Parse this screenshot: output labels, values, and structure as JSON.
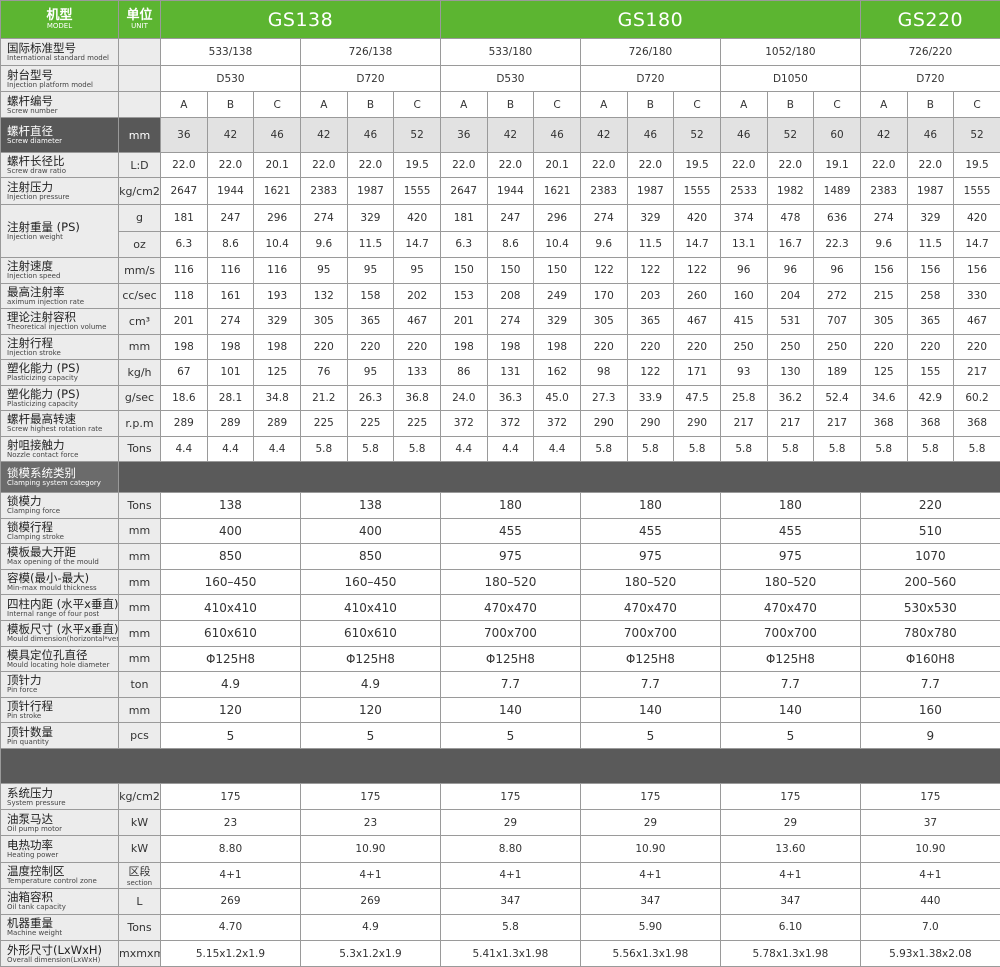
{
  "header": {
    "model_label": {
      "zh": "机型",
      "en": "MODEL"
    },
    "unit_label": {
      "zh": "单位",
      "en": "UNIT"
    },
    "models": [
      "GS138",
      "GS180",
      "GS220"
    ]
  },
  "injection": [
    {
      "zh": "国际标准型号",
      "en": "International standard model",
      "cells": [
        "533/138",
        "726/138",
        "533/180",
        "726/180",
        "1052/180",
        "726/220"
      ]
    },
    {
      "zh": "射台型号",
      "en": "Injection platform model",
      "cells": [
        "D530",
        "D720",
        "D530",
        "D720",
        "D1050",
        "D720"
      ]
    },
    {
      "zh": "螺杆编号",
      "en": "Screw number",
      "cells": [
        "A",
        "B",
        "C",
        "A",
        "B",
        "C",
        "A",
        "B",
        "C",
        "A",
        "B",
        "C",
        "A",
        "B",
        "C",
        "A",
        "B",
        "C"
      ]
    },
    {
      "zh": "螺杆直径",
      "en": "Screw diameter",
      "unit": "mm",
      "dark": true,
      "cells": [
        "36",
        "42",
        "46",
        "42",
        "46",
        "52",
        "36",
        "42",
        "46",
        "42",
        "46",
        "52",
        "46",
        "52",
        "60",
        "42",
        "46",
        "52"
      ]
    },
    {
      "zh": "螺杆长径比",
      "en": "Screw draw ratio",
      "unit": "L:D",
      "cells": [
        "22.0",
        "22.0",
        "20.1",
        "22.0",
        "22.0",
        "19.5",
        "22.0",
        "22.0",
        "20.1",
        "22.0",
        "22.0",
        "19.5",
        "22.0",
        "22.0",
        "19.1",
        "22.0",
        "22.0",
        "19.5"
      ]
    },
    {
      "zh": "注射压力",
      "en": "Injection pressure",
      "unit": "kg/cm2",
      "cells": [
        "2647",
        "1944",
        "1621",
        "2383",
        "1987",
        "1555",
        "2647",
        "1944",
        "1621",
        "2383",
        "1987",
        "1555",
        "2533",
        "1982",
        "1489",
        "2383",
        "1987",
        "1555"
      ]
    },
    {
      "zh": "注射重量 (PS)",
      "en": "Injection weight",
      "sub": [
        {
          "unit": "g",
          "cells": [
            "181",
            "247",
            "296",
            "274",
            "329",
            "420",
            "181",
            "247",
            "296",
            "274",
            "329",
            "420",
            "374",
            "478",
            "636",
            "274",
            "329",
            "420"
          ]
        },
        {
          "unit": "oz",
          "cells": [
            "6.3",
            "8.6",
            "10.4",
            "9.6",
            "11.5",
            "14.7",
            "6.3",
            "8.6",
            "10.4",
            "9.6",
            "11.5",
            "14.7",
            "13.1",
            "16.7",
            "22.3",
            "9.6",
            "11.5",
            "14.7"
          ]
        }
      ]
    },
    {
      "zh": "注射速度",
      "en": "Injection speed",
      "unit": "mm/s",
      "cells": [
        "116",
        "116",
        "116",
        "95",
        "95",
        "95",
        "150",
        "150",
        "150",
        "122",
        "122",
        "122",
        "96",
        "96",
        "96",
        "156",
        "156",
        "156"
      ]
    },
    {
      "zh": "最高注射率",
      "en": "aximum injection rate",
      "unit": "cc/sec",
      "cells": [
        "118",
        "161",
        "193",
        "132",
        "158",
        "202",
        "153",
        "208",
        "249",
        "170",
        "203",
        "260",
        "160",
        "204",
        "272",
        "215",
        "258",
        "330"
      ]
    },
    {
      "zh": "理论注射容积",
      "en": "Theoretical injection volume",
      "unit": "cm³",
      "cells": [
        "201",
        "274",
        "329",
        "305",
        "365",
        "467",
        "201",
        "274",
        "329",
        "305",
        "365",
        "467",
        "415",
        "531",
        "707",
        "305",
        "365",
        "467"
      ]
    },
    {
      "zh": "注射行程",
      "en": "Injection stroke",
      "unit": "mm",
      "cells": [
        "198",
        "198",
        "198",
        "220",
        "220",
        "220",
        "198",
        "198",
        "198",
        "220",
        "220",
        "220",
        "250",
        "250",
        "250",
        "220",
        "220",
        "220"
      ]
    },
    {
      "zh": "塑化能力 (PS)",
      "en": "Plasticizing capacity",
      "unit": "kg/h",
      "cells": [
        "67",
        "101",
        "125",
        "76",
        "95",
        "133",
        "86",
        "131",
        "162",
        "98",
        "122",
        "171",
        "93",
        "130",
        "189",
        "125",
        "155",
        "217"
      ]
    },
    {
      "zh": "塑化能力 (PS)",
      "en": "Plasticizing capacity",
      "unit": "g/sec",
      "cells": [
        "18.6",
        "28.1",
        "34.8",
        "21.2",
        "26.3",
        "36.8",
        "24.0",
        "36.3",
        "45.0",
        "27.3",
        "33.9",
        "47.5",
        "25.8",
        "36.2",
        "52.4",
        "34.6",
        "42.9",
        "60.2"
      ]
    },
    {
      "zh": "螺杆最高转速",
      "en": "Screw highest rotation rate",
      "unit": "r.p.m",
      "cells": [
        "289",
        "289",
        "289",
        "225",
        "225",
        "225",
        "372",
        "372",
        "372",
        "290",
        "290",
        "290",
        "217",
        "217",
        "217",
        "368",
        "368",
        "368"
      ]
    },
    {
      "zh": "射咀接触力",
      "en": "Nozzle contact force",
      "unit": "Tons",
      "cells": [
        "4.4",
        "4.4",
        "4.4",
        "5.8",
        "5.8",
        "5.8",
        "4.4",
        "4.4",
        "4.4",
        "5.8",
        "5.8",
        "5.8",
        "5.8",
        "5.8",
        "5.8",
        "5.8",
        "5.8",
        "5.8"
      ]
    }
  ],
  "clamping_title": {
    "zh": "锁模系统类别",
    "en": "Clamping system category"
  },
  "clamping": [
    {
      "zh": "锁模力",
      "en": "Clamping force",
      "unit": "Tons",
      "cells": [
        "138",
        "138",
        "180",
        "180",
        "180",
        "220"
      ]
    },
    {
      "zh": "锁模行程",
      "en": "Clamping stroke",
      "unit": "mm",
      "cells": [
        "400",
        "400",
        "455",
        "455",
        "455",
        "510"
      ]
    },
    {
      "zh": "模板最大开距",
      "en": "Max opening of the mould",
      "unit": "mm",
      "cells": [
        "850",
        "850",
        "975",
        "975",
        "975",
        "1070"
      ]
    },
    {
      "zh": "容模(最小-最大)",
      "en": "Min-max mould thickness",
      "unit": "mm",
      "cells": [
        "160–450",
        "160–450",
        "180–520",
        "180–520",
        "180–520",
        "200–560"
      ]
    },
    {
      "zh": "四柱内距 (水平x垂直)",
      "en": "Internal range of four post",
      "unit": "mm",
      "cells": [
        "410x410",
        "410x410",
        "470x470",
        "470x470",
        "470x470",
        "530x530"
      ]
    },
    {
      "zh": "模板尺寸 (水平x垂直)",
      "en": "Mould dimension(horizontal*vertical)",
      "unit": "mm",
      "cells": [
        "610x610",
        "610x610",
        "700x700",
        "700x700",
        "700x700",
        "780x780"
      ]
    },
    {
      "zh": "模具定位孔直径",
      "en": "Mould locating hole diameter",
      "unit": "mm",
      "cells": [
        "Φ125H8",
        "Φ125H8",
        "Φ125H8",
        "Φ125H8",
        "Φ125H8",
        "Φ160H8"
      ]
    },
    {
      "zh": "顶针力",
      "en": "Pin force",
      "unit": "ton",
      "cells": [
        "4.9",
        "4.9",
        "7.7",
        "7.7",
        "7.7",
        "7.7"
      ]
    },
    {
      "zh": "顶针行程",
      "en": "Pin stroke",
      "unit": "mm",
      "cells": [
        "120",
        "120",
        "140",
        "140",
        "140",
        "160"
      ]
    },
    {
      "zh": "顶针数量",
      "en": "Pin quantity",
      "unit": "pcs",
      "cells": [
        "5",
        "5",
        "5",
        "5",
        "5",
        "9"
      ]
    }
  ],
  "other": [
    {
      "zh": "系统压力",
      "en": "System pressure",
      "unit": "kg/cm2",
      "cells": [
        "175",
        "175",
        "175",
        "175",
        "175",
        "175"
      ]
    },
    {
      "zh": "油泵马达",
      "en": "Oil pump motor",
      "unit": "kW",
      "cells": [
        "23",
        "23",
        "29",
        "29",
        "29",
        "37"
      ]
    },
    {
      "zh": "电热功率",
      "en": "Heating power",
      "unit": "kW",
      "cells": [
        "8.80",
        "10.90",
        "8.80",
        "10.90",
        "13.60",
        "10.90"
      ]
    },
    {
      "zh": "温度控制区",
      "en": "Temperature control zone",
      "unit": "区段",
      "unit_en": "section",
      "cells": [
        "4+1",
        "4+1",
        "4+1",
        "4+1",
        "4+1",
        "4+1"
      ]
    },
    {
      "zh": "油箱容积",
      "en": "Oil tank capacity",
      "unit": "L",
      "cells": [
        "269",
        "269",
        "347",
        "347",
        "347",
        "440"
      ]
    },
    {
      "zh": "机器重量",
      "en": "Machine weight",
      "unit": "Tons",
      "cells": [
        "4.70",
        "4.9",
        "5.8",
        "5.90",
        "6.10",
        "7.0"
      ]
    },
    {
      "zh": "外形尺寸(LxWxH)",
      "en": "Overall dimension(LxWxH)",
      "unit": "mxmxm",
      "cells": [
        "5.15x1.2x1.9",
        "5.3x1.2x1.9",
        "5.41x1.3x1.98",
        "5.56x1.3x1.98",
        "5.78x1.3x1.98",
        "5.93x1.38x2.08"
      ]
    }
  ]
}
